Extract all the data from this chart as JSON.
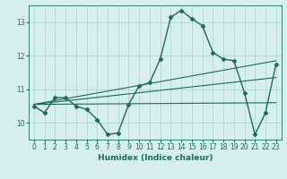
{
  "title": "",
  "xlabel": "Humidex (Indice chaleur)",
  "ylabel": "",
  "background_color": "#d6eef0",
  "line_color": "#1a6b5a",
  "grid_color": "#b0d0d4",
  "x_data": [
    0,
    1,
    2,
    3,
    4,
    5,
    6,
    7,
    8,
    9,
    10,
    11,
    12,
    13,
    14,
    15,
    16,
    17,
    18,
    19,
    20,
    21,
    22,
    23
  ],
  "y_data": [
    10.5,
    10.3,
    10.75,
    10.75,
    10.5,
    10.4,
    10.1,
    9.65,
    9.7,
    10.55,
    11.1,
    11.2,
    11.9,
    13.15,
    13.35,
    13.1,
    12.9,
    12.1,
    11.9,
    11.85,
    10.9,
    9.65,
    10.3,
    11.75
  ],
  "ylim": [
    9.5,
    13.5
  ],
  "xlim": [
    -0.5,
    23.5
  ],
  "yticks": [
    10,
    11,
    12,
    13
  ],
  "xticks": [
    0,
    1,
    2,
    3,
    4,
    5,
    6,
    7,
    8,
    9,
    10,
    11,
    12,
    13,
    14,
    15,
    16,
    17,
    18,
    19,
    20,
    21,
    22,
    23
  ],
  "marker": "D",
  "marker_size": 2.5,
  "line_width": 1.0,
  "regression_lines": [
    {
      "x0": 0,
      "y0": 10.55,
      "x1": 23,
      "y1": 11.85
    },
    {
      "x0": 0,
      "y0": 10.55,
      "x1": 23,
      "y1": 11.35
    },
    {
      "x0": 0,
      "y0": 10.55,
      "x1": 23,
      "y1": 10.6
    }
  ],
  "xlabel_fontsize": 6.5,
  "tick_fontsize": 5.5
}
